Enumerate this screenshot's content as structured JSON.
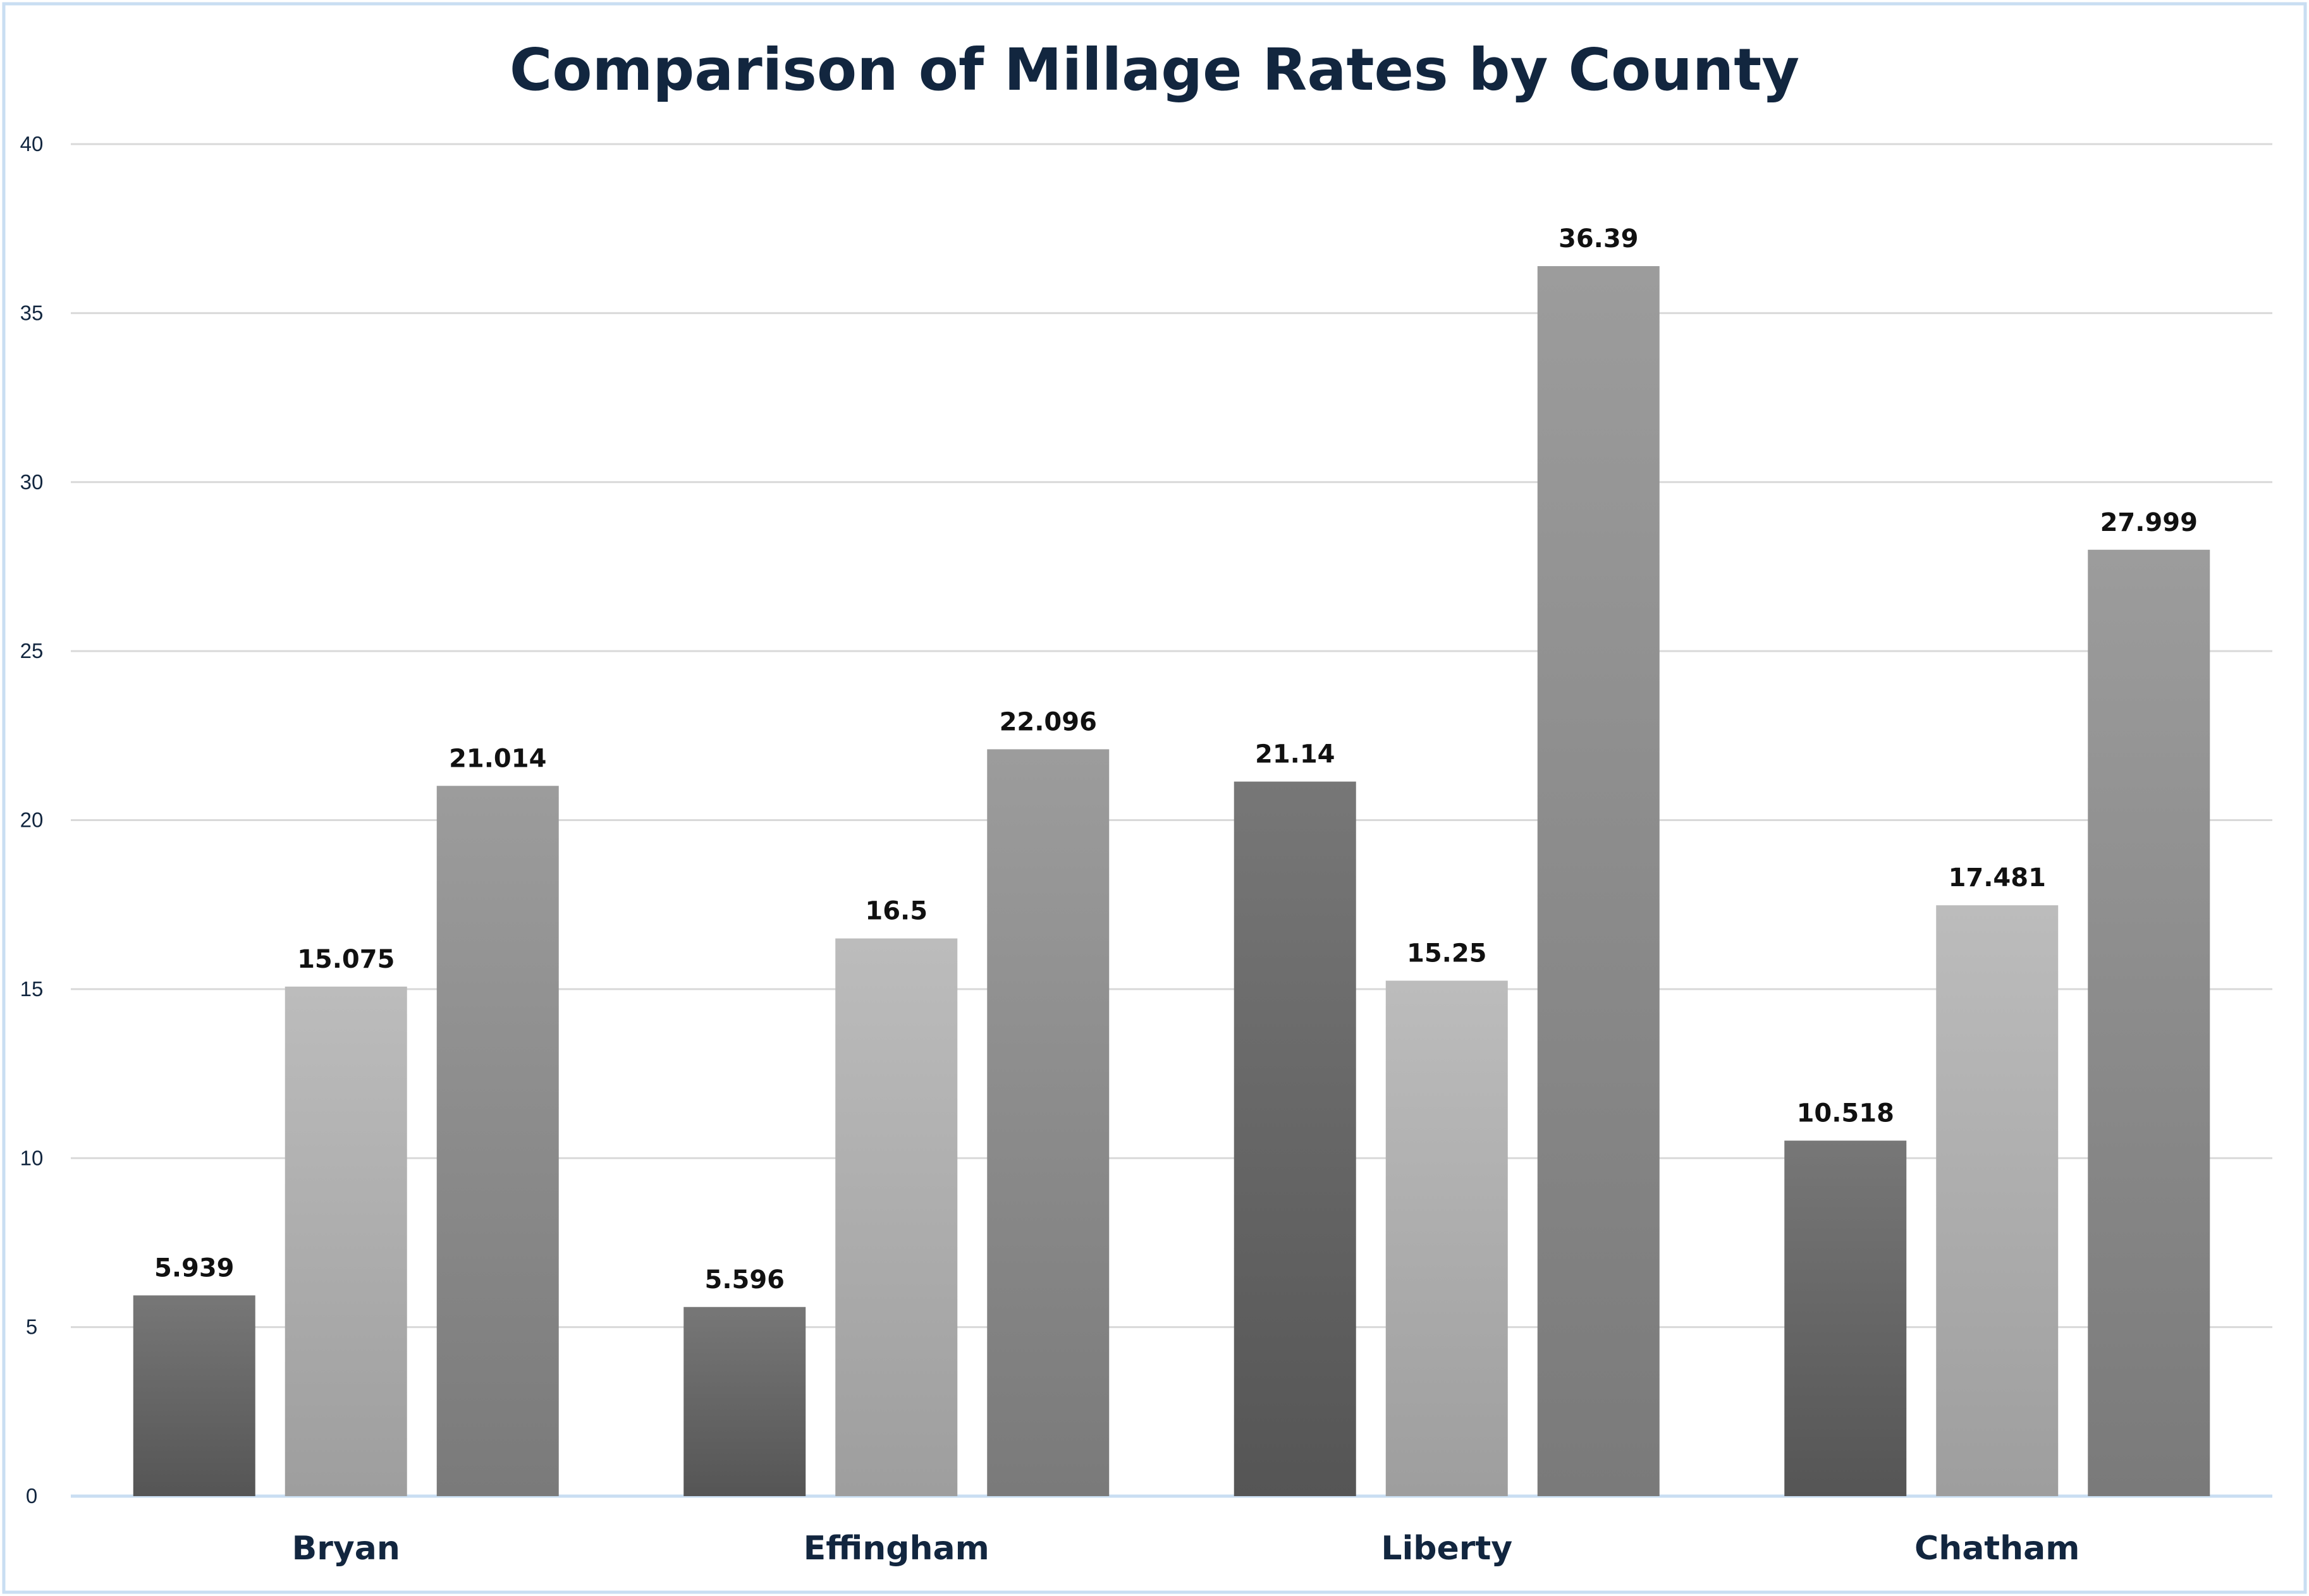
{
  "chart_data": {
    "type": "bar",
    "title": "Comparison of Millage Rates by County",
    "xlabel": "",
    "ylabel": "",
    "categories": [
      "Bryan",
      "Effingham",
      "Liberty",
      "Chatham"
    ],
    "series": [
      {
        "values": [
          5.939,
          5.596,
          21.14,
          10.518
        ],
        "color_top": "#777777",
        "color_bottom": "#555555"
      },
      {
        "values": [
          15.075,
          16.5,
          15.25,
          17.481
        ],
        "color_top": "#bcbcbc",
        "color_bottom": "#9e9e9e"
      },
      {
        "values": [
          21.014,
          22.096,
          36.39,
          27.999
        ],
        "color_top": "#9c9c9c",
        "color_bottom": "#7a7a7a"
      }
    ],
    "data_labels": [
      [
        "5.939",
        "5.596",
        "21.14",
        "10.518"
      ],
      [
        "15.075",
        "16.5",
        "15.25",
        "17.481"
      ],
      [
        "21.014",
        "22.096",
        "36.39",
        "27.999"
      ]
    ],
    "ylim": [
      0,
      40
    ],
    "yticks": [
      "0",
      "5",
      "10",
      "15",
      "20",
      "25",
      "30",
      "35",
      "40"
    ],
    "grid": true,
    "legend": "none",
    "colors": {
      "title": "#12263f",
      "grid": "#d9d9d9",
      "axis": "#c9def2",
      "border": "#c9def2"
    }
  }
}
